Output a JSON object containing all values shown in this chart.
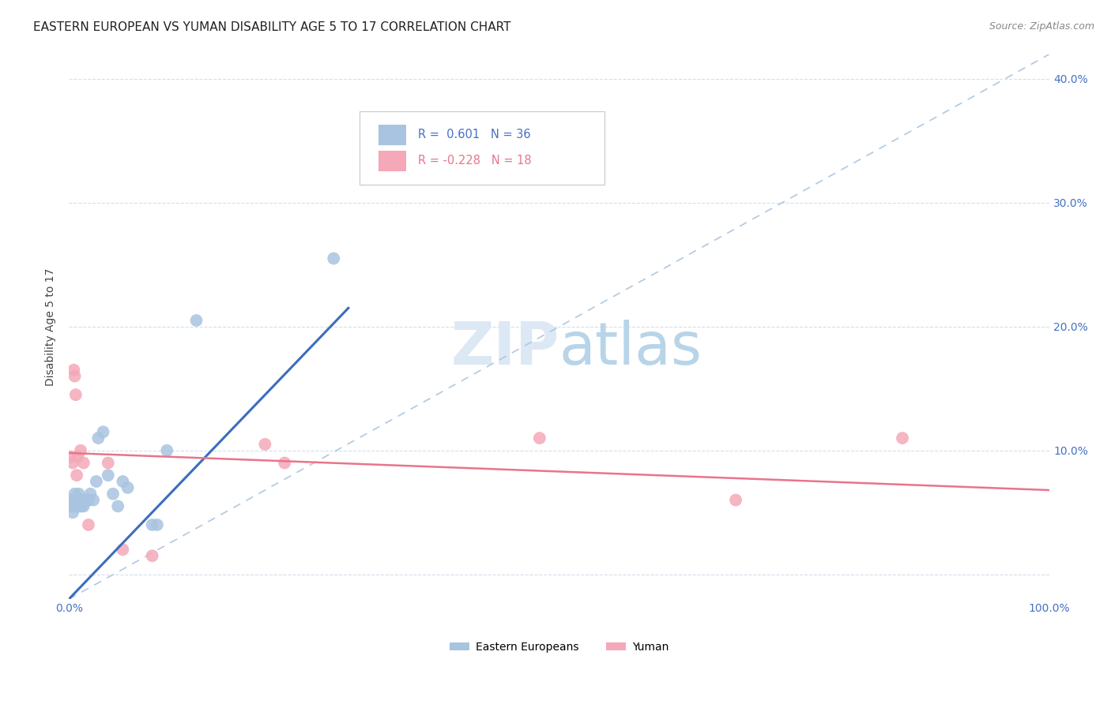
{
  "title": "EASTERN EUROPEAN VS YUMAN DISABILITY AGE 5 TO 17 CORRELATION CHART",
  "source": "Source: ZipAtlas.com",
  "ylabel": "Disability Age 5 to 17",
  "xlim": [
    0,
    1.0
  ],
  "ylim": [
    -0.02,
    0.42
  ],
  "blue_r": 0.601,
  "blue_n": 36,
  "pink_r": -0.228,
  "pink_n": 18,
  "blue_color": "#a8c4e0",
  "pink_color": "#f4a8b8",
  "blue_line_color": "#3b6dbe",
  "pink_line_color": "#e8758a",
  "diag_line_color": "#b0c8e0",
  "watermark_color": "#dce8f0",
  "background_color": "#ffffff",
  "legend_r_color": "#4472c4",
  "legend_pink_r_color": "#e8758a",
  "blue_x": [
    0.002,
    0.003,
    0.004,
    0.005,
    0.006,
    0.006,
    0.007,
    0.008,
    0.009,
    0.01,
    0.01,
    0.011,
    0.012,
    0.013,
    0.014,
    0.015,
    0.016,
    0.017,
    0.018,
    0.019,
    0.02,
    0.022,
    0.025,
    0.028,
    0.03,
    0.035,
    0.04,
    0.045,
    0.05,
    0.055,
    0.06,
    0.085,
    0.09,
    0.1,
    0.13,
    0.27
  ],
  "blue_y": [
    0.055,
    0.06,
    0.05,
    0.055,
    0.06,
    0.065,
    0.055,
    0.06,
    0.055,
    0.06,
    0.065,
    0.055,
    0.06,
    0.055,
    0.06,
    0.055,
    0.06,
    0.06,
    0.06,
    0.06,
    0.06,
    0.065,
    0.06,
    0.075,
    0.11,
    0.115,
    0.08,
    0.065,
    0.055,
    0.075,
    0.07,
    0.04,
    0.04,
    0.1,
    0.205,
    0.255
  ],
  "pink_x": [
    0.002,
    0.004,
    0.005,
    0.006,
    0.007,
    0.008,
    0.009,
    0.012,
    0.015,
    0.02,
    0.04,
    0.055,
    0.085,
    0.2,
    0.22,
    0.48,
    0.68,
    0.85
  ],
  "pink_y": [
    0.095,
    0.09,
    0.165,
    0.16,
    0.145,
    0.08,
    0.095,
    0.1,
    0.09,
    0.04,
    0.09,
    0.02,
    0.015,
    0.105,
    0.09,
    0.11,
    0.06,
    0.11
  ],
  "blue_line_x0": 0.0,
  "blue_line_y0": -0.02,
  "blue_line_x1": 0.285,
  "blue_line_y1": 0.215,
  "pink_line_x0": 0.0,
  "pink_line_y0": 0.098,
  "pink_line_x1": 1.0,
  "pink_line_y1": 0.068,
  "legend_labels": [
    "Eastern Europeans",
    "Yuman"
  ],
  "title_fontsize": 11,
  "axis_label_fontsize": 10,
  "tick_fontsize": 10,
  "legend_fontsize": 10,
  "right_ytick_color": "#4472c4"
}
